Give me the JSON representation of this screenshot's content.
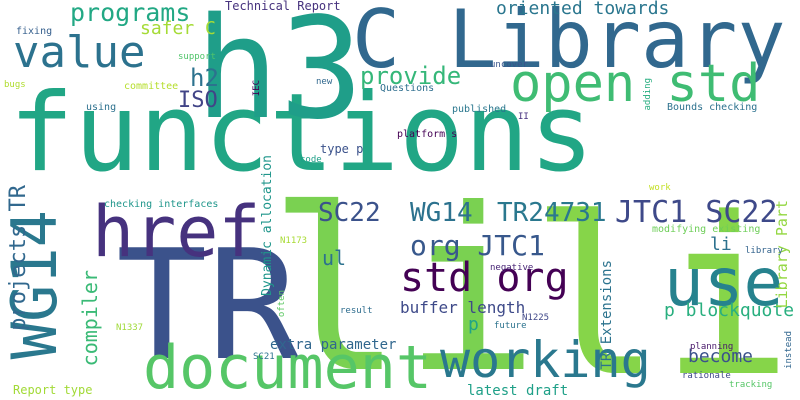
{
  "words": [
    {
      "text": "functions",
      "color": "#21a685"
    },
    {
      "text": "TR",
      "color": "#3b528b"
    },
    {
      "text": "li",
      "color": "#7ad151"
    },
    {
      "text": "li",
      "color": "#86d549"
    },
    {
      "text": "h3",
      "color": "#1f9e89"
    },
    {
      "text": "C Library",
      "color": "#31688e"
    },
    {
      "text": "href",
      "color": "#46327e"
    },
    {
      "text": "WG14",
      "color": "#2a788e"
    },
    {
      "text": "document",
      "color": "#56c667"
    },
    {
      "text": "working",
      "color": "#2a788e"
    },
    {
      "text": "use",
      "color": "#26828e"
    },
    {
      "text": "open std",
      "color": "#3fbc73"
    },
    {
      "text": "std org",
      "color": "#440154"
    },
    {
      "text": "value",
      "color": "#2c728e"
    },
    {
      "text": "programs",
      "color": "#22a884"
    },
    {
      "text": "SC22",
      "color": "#3b528b"
    },
    {
      "text": "WG14",
      "color": "#2c728e"
    },
    {
      "text": "TR24731",
      "color": "#2a788e"
    },
    {
      "text": "JTC1 SC22",
      "color": "#3e4989"
    },
    {
      "text": "org JTC1",
      "color": "#38588c"
    },
    {
      "text": "projects TR",
      "color": "#31688e"
    },
    {
      "text": "h2",
      "color": "#2c728e"
    },
    {
      "text": "ISO",
      "color": "#414487"
    },
    {
      "text": "provide",
      "color": "#35b779"
    },
    {
      "text": "oriented towards",
      "color": "#2a768e"
    },
    {
      "text": "safer C",
      "color": "#a5db36"
    },
    {
      "text": "Technical Report",
      "color": "#46327e"
    },
    {
      "text": "compiler",
      "color": "#3aba76"
    },
    {
      "text": "ul",
      "color": "#2c728e"
    },
    {
      "text": "p blockquote",
      "color": "#29af7f"
    },
    {
      "text": "become",
      "color": "#3b528b"
    },
    {
      "text": "Library Part",
      "color": "#93d741"
    },
    {
      "text": "buffer length",
      "color": "#3e4a89"
    },
    {
      "text": "p",
      "color": "#20a386"
    },
    {
      "text": "li",
      "color": "#2c718e"
    },
    {
      "text": "extra parameter",
      "color": "#31678e"
    },
    {
      "text": "latest draft",
      "color": "#1fa088"
    },
    {
      "text": "TR Extensions",
      "color": "#2c738e"
    },
    {
      "text": "Dynamic allocation",
      "color": "#1f968b"
    },
    {
      "text": "type p",
      "color": "#3b528b"
    },
    {
      "text": "Report type",
      "color": "#a2da37"
    },
    {
      "text": "fixing",
      "color": "#355f8d"
    },
    {
      "text": "support",
      "color": "#50c46a"
    },
    {
      "text": "bugs",
      "color": "#b0dd2f"
    },
    {
      "text": "committee",
      "color": "#b5de2b"
    },
    {
      "text": "IEC",
      "color": "#440154"
    },
    {
      "text": "using",
      "color": "#2d718e"
    },
    {
      "text": "new",
      "color": "#31688e"
    },
    {
      "text": "Questions",
      "color": "#2e6e8e"
    },
    {
      "text": "uncover",
      "color": "#39558c"
    },
    {
      "text": "adding",
      "color": "#28ae80"
    },
    {
      "text": "Bounds checking",
      "color": "#2c718e"
    },
    {
      "text": "II",
      "color": "#46307e"
    },
    {
      "text": "published",
      "color": "#2a778e"
    },
    {
      "text": "platform s",
      "color": "#440154"
    },
    {
      "text": "code",
      "color": "#1fa088"
    },
    {
      "text": "checking interfaces",
      "color": "#1f968b"
    },
    {
      "text": "N1173",
      "color": "#a8db34"
    },
    {
      "text": "work",
      "color": "#c2df23"
    },
    {
      "text": "modifying existing",
      "color": "#6ece58"
    },
    {
      "text": "library",
      "color": "#33638d"
    },
    {
      "text": "negative",
      "color": "#482576"
    },
    {
      "text": "often",
      "color": "#5cc863"
    },
    {
      "text": "result",
      "color": "#2e6d8e"
    },
    {
      "text": "N1225",
      "color": "#3f4788"
    },
    {
      "text": "future",
      "color": "#2c738e"
    },
    {
      "text": "N1337",
      "color": "#a0da39"
    },
    {
      "text": "SC21",
      "color": "#2c728e"
    },
    {
      "text": "planning",
      "color": "#48186a"
    },
    {
      "text": "rationale",
      "color": "#3e4989"
    },
    {
      "text": "tracking",
      "color": "#56c667"
    },
    {
      "text": "instead",
      "color": "#31668e"
    }
  ]
}
